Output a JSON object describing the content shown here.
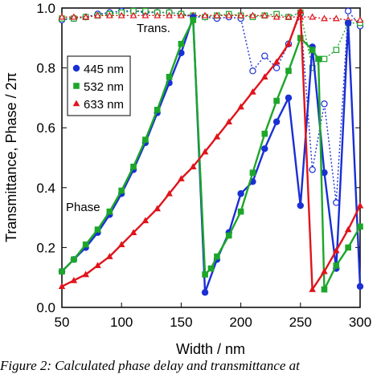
{
  "caption": "Figure 2: Calculated phase delay and transmittance at",
  "chart_data": {
    "type": "line",
    "xlabel": "Width / nm",
    "ylabel": "Transmittance, Phase / 2π",
    "xlim": [
      50,
      300
    ],
    "ylim": [
      0,
      1.0
    ],
    "xticks": [
      "50",
      "100",
      "150",
      "200",
      "250",
      "300"
    ],
    "yticks": [
      "0.0",
      "0.2",
      "0.4",
      "0.6",
      "0.8",
      "1.0"
    ],
    "grid": false,
    "legend_position": "inside-top-left",
    "annotations": [
      {
        "text": "Trans.",
        "x": 150,
        "y": 0.945
      },
      {
        "text": "Phase",
        "x": 52,
        "y": 0.325
      }
    ],
    "series": [
      {
        "name": "445 nm",
        "color": "#1a2fd4",
        "marker": "circle",
        "quantity": "phase",
        "x": [
          50,
          60,
          70,
          80,
          90,
          100,
          110,
          120,
          130,
          140,
          150,
          160,
          170,
          180,
          190,
          200,
          210,
          220,
          230,
          240,
          250,
          260,
          270,
          280,
          290,
          300
        ],
        "y": [
          0.12,
          0.16,
          0.2,
          0.25,
          0.31,
          0.38,
          0.46,
          0.55,
          0.65,
          0.75,
          0.85,
          0.97,
          0.05,
          0.16,
          0.25,
          0.38,
          0.42,
          0.53,
          0.62,
          0.7,
          0.34,
          0.87,
          0.45,
          0.13,
          0.95,
          0.07
        ]
      },
      {
        "name": "532 nm",
        "color": "#1ca62a",
        "marker": "square",
        "quantity": "phase",
        "x": [
          50,
          60,
          70,
          80,
          90,
          100,
          110,
          120,
          130,
          140,
          150,
          160,
          170,
          175,
          180,
          190,
          200,
          210,
          220,
          230,
          240,
          250,
          260,
          265,
          270,
          280,
          290,
          300
        ],
        "y": [
          0.12,
          0.16,
          0.21,
          0.26,
          0.32,
          0.39,
          0.47,
          0.56,
          0.66,
          0.77,
          0.88,
          0.96,
          0.11,
          0.13,
          0.17,
          0.24,
          0.32,
          0.45,
          0.58,
          0.69,
          0.79,
          0.9,
          0.86,
          0.83,
          0.06,
          0.14,
          0.2,
          0.27
        ]
      },
      {
        "name": "633 nm",
        "color": "#e0141b",
        "marker": "triangle",
        "quantity": "phase",
        "x": [
          50,
          60,
          70,
          80,
          90,
          100,
          110,
          120,
          130,
          140,
          150,
          160,
          170,
          180,
          190,
          200,
          210,
          220,
          230,
          240,
          250,
          260,
          270,
          280,
          290,
          300
        ],
        "y": [
          0.07,
          0.09,
          0.11,
          0.14,
          0.17,
          0.21,
          0.25,
          0.29,
          0.33,
          0.38,
          0.43,
          0.47,
          0.52,
          0.57,
          0.62,
          0.67,
          0.72,
          0.77,
          0.82,
          0.88,
          0.99,
          0.06,
          0.12,
          0.19,
          0.26,
          0.34
        ]
      },
      {
        "name": "445 nm",
        "color": "#1a2fd4",
        "marker": "circle-open",
        "quantity": "transmittance",
        "x": [
          50,
          60,
          70,
          80,
          90,
          100,
          110,
          120,
          130,
          140,
          150,
          160,
          170,
          180,
          190,
          200,
          210,
          220,
          230,
          240,
          250,
          260,
          270,
          280,
          290,
          300
        ],
        "y": [
          0.96,
          0.965,
          0.97,
          0.98,
          0.985,
          0.99,
          0.99,
          0.985,
          0.985,
          0.985,
          0.98,
          0.97,
          0.97,
          0.965,
          0.97,
          0.965,
          0.79,
          0.84,
          0.8,
          0.88,
          0.98,
          0.46,
          0.68,
          0.35,
          0.99,
          0.94
        ]
      },
      {
        "name": "532 nm",
        "color": "#1ca62a",
        "marker": "square-open",
        "quantity": "transmittance",
        "x": [
          50,
          60,
          70,
          80,
          90,
          100,
          110,
          120,
          130,
          140,
          150,
          160,
          170,
          180,
          190,
          200,
          210,
          220,
          230,
          240,
          250,
          260,
          270,
          280,
          290,
          300
        ],
        "y": [
          0.965,
          0.965,
          0.97,
          0.975,
          0.98,
          0.985,
          0.99,
          0.99,
          0.985,
          0.985,
          0.98,
          0.975,
          0.97,
          0.975,
          0.98,
          0.975,
          0.97,
          0.975,
          0.98,
          0.97,
          0.985,
          0.8,
          0.83,
          0.86,
          0.95,
          0.95
        ]
      },
      {
        "name": "633 nm",
        "color": "#e0141b",
        "marker": "triangle-open",
        "quantity": "transmittance",
        "x": [
          50,
          60,
          70,
          80,
          90,
          100,
          110,
          120,
          130,
          140,
          150,
          160,
          170,
          180,
          190,
          200,
          210,
          220,
          230,
          240,
          250,
          260,
          270,
          280,
          290,
          300
        ],
        "y": [
          0.97,
          0.97,
          0.97,
          0.975,
          0.975,
          0.975,
          0.975,
          0.975,
          0.975,
          0.975,
          0.975,
          0.975,
          0.975,
          0.975,
          0.975,
          0.975,
          0.975,
          0.975,
          0.97,
          0.97,
          0.97,
          0.97,
          0.965,
          0.965,
          0.96,
          0.96
        ]
      }
    ]
  }
}
